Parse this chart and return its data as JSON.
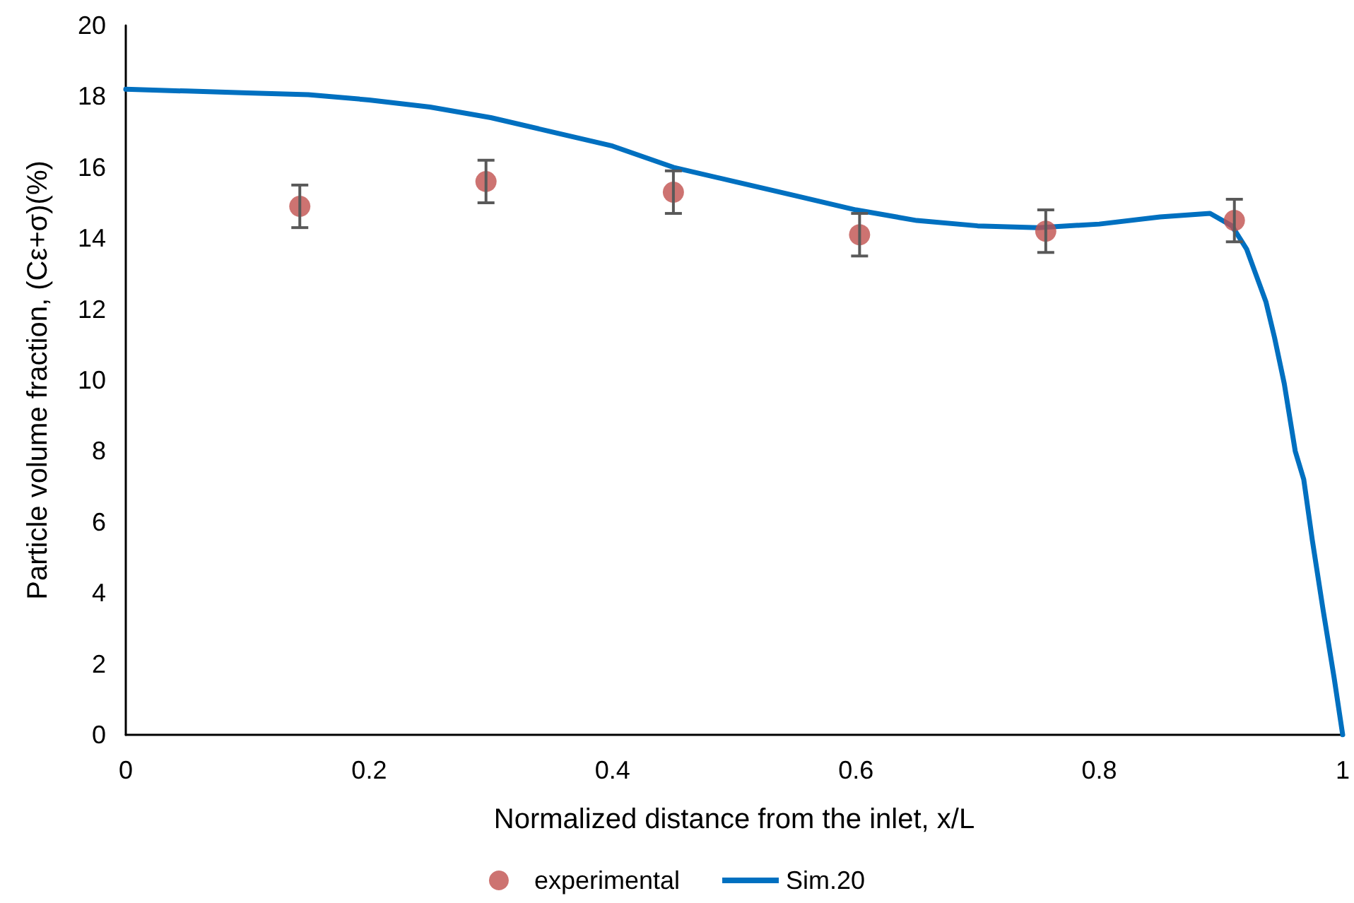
{
  "chart_data": {
    "type": "scatter",
    "xlabel": "Normalized distance from the inlet, x/L",
    "ylabel": "Particle volume fraction, (Cε+σ)(%)",
    "xlim": [
      0,
      1
    ],
    "xticks": [
      0,
      0.2,
      0.4,
      0.6,
      0.8,
      1
    ],
    "ylim": [
      0,
      20
    ],
    "yticks": [
      0,
      2,
      4,
      6,
      8,
      10,
      12,
      14,
      16,
      18,
      20
    ],
    "grid": false,
    "legend": "bottom",
    "marker": "circle",
    "series": [
      {
        "name": "experimental",
        "color": "#c0504d",
        "x": [
          0.143,
          0.296,
          0.45,
          0.603,
          0.756,
          0.911
        ],
        "values": [
          14.9,
          15.6,
          15.3,
          14.1,
          14.2,
          14.5
        ],
        "errors": [
          0.6,
          0.6,
          0.6,
          0.6,
          0.6,
          0.6
        ]
      },
      {
        "name": "Sim.20",
        "type": "line",
        "color": "#0070c0",
        "marker": "none",
        "line_style": "solid",
        "x": [
          0,
          0.05,
          0.1,
          0.15,
          0.2,
          0.25,
          0.3,
          0.35,
          0.4,
          0.45,
          0.5,
          0.55,
          0.6,
          0.65,
          0.7,
          0.75,
          0.8,
          0.85,
          0.891,
          0.909,
          0.921,
          0.937,
          0.944,
          0.952,
          0.961,
          0.968,
          0.975,
          0.984,
          0.993,
          1
        ],
        "values": [
          18.2,
          18.15,
          18.1,
          18.05,
          17.9,
          17.7,
          17.4,
          17.0,
          16.6,
          16.0,
          15.6,
          15.2,
          14.8,
          14.5,
          14.35,
          14.3,
          14.4,
          14.6,
          14.7,
          14.35,
          13.7,
          12.2,
          11.2,
          9.9,
          8.0,
          7.2,
          5.5,
          3.5,
          1.6,
          0
        ]
      }
    ]
  }
}
